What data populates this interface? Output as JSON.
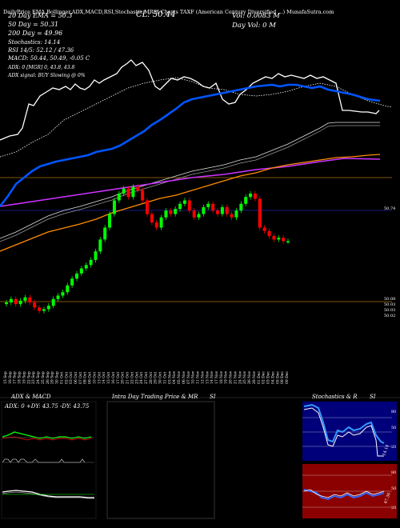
{
  "header": {
    "top_line": "Daily Chart TAXF (American Century Diversified Municipal Bond ETF) MunafaSutra.com",
    "top_line_display": "DailyPrice  EMA,Bollinger,ADX,MACD,RSI,Stochastic,MRSI Charts TAXF  (American Century Diversified ...)  MunafaSutra.com",
    "close_label": "CL: 50.44",
    "ema20": "20 Day EMA = 50.3",
    "ema50": "50 Day = 50.31",
    "ema200": "200 Day = 49.96",
    "stoch": "Stochastics: 14.14",
    "rsi": "RSI 14/5: 52.12 / 47.36",
    "macd": "MACD: 50.44, 50.49, -0.05 C",
    "vol": "Vol: 0.0083  M",
    "day_vol": "Day Vol: 0  M",
    "adx_line": "ADX: 0 [MGR] 0, 43.8, 43.8",
    "adx_signal": "ADX signal: BUY Slowing @ 0%"
  },
  "price_labels": [
    "50.74",
    "50.08",
    "50.03",
    "50.03",
    "50.02"
  ],
  "chart_data": {
    "type": "candlestick",
    "x": [
      "15 Sep",
      "16 Sep",
      "17 Sep",
      "18 Sep",
      "19 Sep",
      "22 Sep",
      "23 Sep",
      "24 Sep",
      "25 Sep",
      "26 Sep",
      "29 Sep",
      "30 Sep",
      "01 Oct",
      "02 Oct",
      "03 Oct",
      "06 Oct",
      "07 Oct",
      "08 Oct",
      "09 Oct",
      "10 Oct",
      "13 Oct",
      "14 Oct",
      "15 Oct",
      "16 Oct",
      "17 Oct",
      "20 Oct",
      "21 Oct",
      "22 Oct",
      "23 Oct",
      "24 Oct",
      "27 Oct",
      "28 Oct",
      "29 Oct",
      "30 Oct",
      "31 Oct",
      "03 Nov",
      "04 Nov",
      "05 Nov",
      "06 Nov",
      "07 Nov",
      "10 Nov",
      "11 Nov",
      "12 Nov",
      "13 Nov",
      "14 Nov",
      "17 Nov",
      "18 Nov",
      "19 Nov",
      "20 Nov",
      "21 Nov",
      "24 Nov",
      "25 Nov",
      "26 Nov",
      "28 Nov",
      "01 Dec",
      "02 Dec",
      "03 Dec",
      "04 Dec",
      "05 Dec",
      "08 Dec",
      "09 Dec"
    ],
    "close": [
      50.08,
      50.1,
      50.07,
      50.09,
      50.11,
      50.08,
      50.05,
      50.03,
      50.04,
      50.06,
      50.1,
      50.12,
      50.14,
      50.18,
      50.22,
      50.25,
      50.28,
      50.3,
      50.33,
      50.38,
      50.45,
      50.52,
      50.6,
      50.68,
      50.72,
      50.75,
      50.7,
      50.76,
      50.74,
      50.68,
      50.6,
      50.55,
      50.52,
      50.58,
      50.62,
      50.6,
      50.63,
      50.66,
      50.68,
      50.62,
      50.58,
      50.6,
      50.64,
      50.66,
      50.62,
      50.6,
      50.64,
      50.6,
      50.58,
      50.62,
      50.66,
      50.7,
      50.72,
      50.69,
      50.52,
      50.5,
      50.47,
      50.45,
      50.46,
      50.44,
      50.44
    ]
  },
  "bottom": {
    "adx_title": "ADX  & MACD",
    "adx_values": "ADX: 0  +DY: 43.75  -DY: 43.75",
    "intra_title": "Intra Day Trading Price  & MR",
    "intra_title_tail": "SI",
    "stoch_title": "Stochastics & R",
    "stoch_title_tail": "SI",
    "stoch_value": "14.14",
    "rsi_value": "47.36",
    "stoch_ticks": [
      "80",
      "50",
      "20"
    ],
    "rsi_ticks": [
      "80",
      "50",
      "20"
    ]
  },
  "colors": {
    "up": "#00ff00",
    "down": "#ff0000",
    "ema20_blue": "#0066ff",
    "ema50_magenta": "#cc33ff",
    "ema200_orange": "#ff8c00"
  }
}
